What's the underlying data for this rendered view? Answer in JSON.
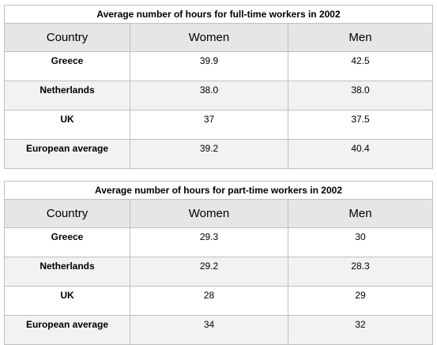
{
  "tables": [
    {
      "title": "Average number of hours for full-time workers in 2002",
      "columns": [
        "Country",
        "Women",
        "Men"
      ],
      "rows": [
        [
          "Greece",
          "39.9",
          "42.5"
        ],
        [
          "Netherlands",
          "38.0",
          "38.0"
        ],
        [
          "UK",
          "37",
          "37.5"
        ],
        [
          "European average",
          "39.2",
          "40.4"
        ]
      ]
    },
    {
      "title": "Average number of hours for part-time workers in 2002",
      "columns": [
        "Country",
        "Women",
        "Men"
      ],
      "rows": [
        [
          "Greece",
          "29.3",
          "30"
        ],
        [
          "Netherlands",
          "29.2",
          "28.3"
        ],
        [
          "UK",
          "28",
          "29"
        ],
        [
          "European average",
          "34",
          "32"
        ]
      ]
    }
  ],
  "chart_data": [
    {
      "type": "table",
      "title": "Average number of hours for full-time workers in 2002",
      "columns": [
        "Country",
        "Women",
        "Men"
      ],
      "categories": [
        "Greece",
        "Netherlands",
        "UK",
        "European average"
      ],
      "series": [
        {
          "name": "Women",
          "values": [
            39.9,
            38.0,
            37,
            39.2
          ]
        },
        {
          "name": "Men",
          "values": [
            42.5,
            38.0,
            37.5,
            40.4
          ]
        }
      ]
    },
    {
      "type": "table",
      "title": "Average number of hours for part-time workers in 2002",
      "columns": [
        "Country",
        "Women",
        "Men"
      ],
      "categories": [
        "Greece",
        "Netherlands",
        "UK",
        "European average"
      ],
      "series": [
        {
          "name": "Women",
          "values": [
            29.3,
            29.2,
            28,
            34
          ]
        },
        {
          "name": "Men",
          "values": [
            30,
            28.3,
            29,
            32
          ]
        }
      ]
    }
  ],
  "colors": {
    "header_fill": "#e7e6e6",
    "alt_row_fill": "#f2f2f2",
    "border": "#bfbfbf"
  }
}
